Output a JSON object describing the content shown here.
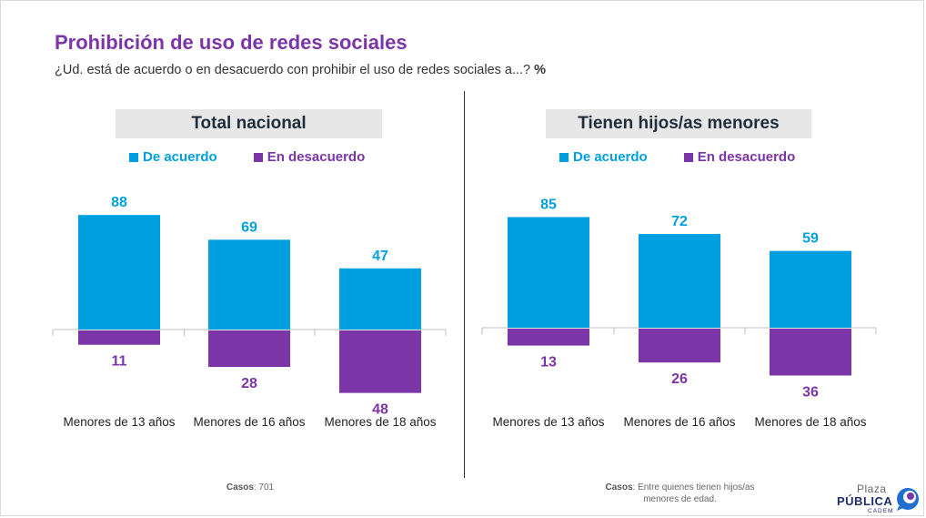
{
  "title": "Prohibición de uso de redes sociales",
  "subtitle": "¿Ud. está de acuerdo o en desacuerdo con prohibir el uso de redes sociales a...?",
  "subtitle_unit": "%",
  "colors": {
    "agree": "#00a0e0",
    "disagree": "#7b35a6",
    "title": "#7b35a6"
  },
  "legend": {
    "agree": "De acuerdo",
    "disagree": "En desacuerdo"
  },
  "chart_data": [
    {
      "type": "bar",
      "title": "Total nacional",
      "categories": [
        "Menores de 13 años",
        "Menores de 16 años",
        "Menores de 18 años"
      ],
      "series": [
        {
          "name": "De acuerdo",
          "values": [
            88,
            69,
            47
          ]
        },
        {
          "name": "En desacuerdo",
          "values": [
            11,
            28,
            48
          ]
        }
      ],
      "stacking": "diverging"
    },
    {
      "type": "bar",
      "title": "Tienen hijos/as menores",
      "categories": [
        "Menores de 13 años",
        "Menores de 16 años",
        "Menores de 18 años"
      ],
      "series": [
        {
          "name": "De acuerdo",
          "values": [
            85,
            72,
            59
          ]
        },
        {
          "name": "En desacuerdo",
          "values": [
            13,
            26,
            36
          ]
        }
      ],
      "stacking": "diverging"
    }
  ],
  "footnotes": {
    "left": {
      "label": "Casos",
      "text": ": 701"
    },
    "right": {
      "label": "Casos",
      "text": ": Entre quienes tienen hijos/as menores de edad."
    }
  },
  "logo": {
    "line1": "Plaza",
    "line2": "PÚBLICA",
    "line3": "CADEM"
  }
}
